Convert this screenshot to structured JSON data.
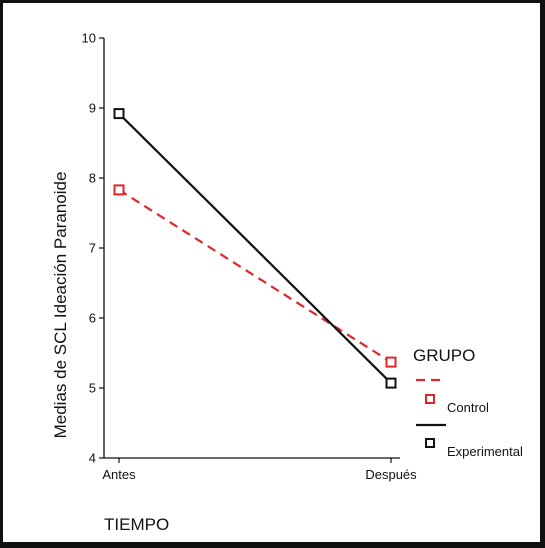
{
  "chart_data": {
    "type": "line",
    "categories": [
      "Antes",
      "Después"
    ],
    "series": [
      {
        "name": "Control",
        "values": [
          7.83,
          5.37
        ],
        "color": "#e0262b",
        "dash": true
      },
      {
        "name": "Experimental",
        "values": [
          8.92,
          5.07
        ],
        "color": "#111111",
        "dash": false
      }
    ],
    "xlabel": "TIEMPO",
    "ylabel": "Medias de SCL Ideación Paranoide",
    "ylim": [
      4,
      10
    ],
    "yticks": [
      4,
      5,
      6,
      7,
      8,
      9,
      10
    ],
    "legend": {
      "title": "GRUPO",
      "placement": "right"
    },
    "grid": false
  }
}
